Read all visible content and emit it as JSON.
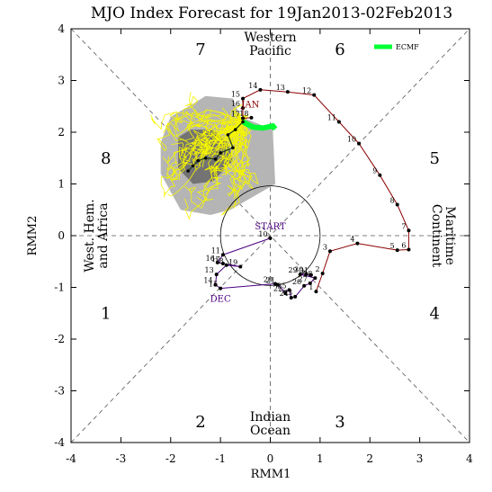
{
  "chart_data": {
    "type": "scatter",
    "title": "MJO Index Forecast for 19Jan2013-02Feb2013",
    "xlabel": "RMM1",
    "ylabel": "RMM2",
    "xlim": [
      -4,
      4
    ],
    "ylim": [
      -4,
      4
    ],
    "x_ticks": [
      "-4",
      "-3",
      "-2",
      "-1",
      "0",
      "1",
      "2",
      "3",
      "4"
    ],
    "y_ticks": [
      "-4",
      "-3",
      "-2",
      "-1",
      "0",
      "1",
      "2",
      "3",
      "4"
    ],
    "phase_numbers": [
      {
        "label": "1",
        "x": -3.3,
        "y": -1.5
      },
      {
        "label": "2",
        "x": -1.4,
        "y": -3.6
      },
      {
        "label": "3",
        "x": 1.4,
        "y": -3.6
      },
      {
        "label": "4",
        "x": 3.3,
        "y": -1.5
      },
      {
        "label": "5",
        "x": 3.3,
        "y": 1.5
      },
      {
        "label": "6",
        "x": 1.4,
        "y": 3.6
      },
      {
        "label": "7",
        "x": -1.4,
        "y": 3.6
      },
      {
        "label": "8",
        "x": -3.3,
        "y": 1.5
      }
    ],
    "regions": {
      "top": [
        "Western",
        "Pacific"
      ],
      "bottom": [
        "Indian",
        "Ocean"
      ],
      "left": [
        "West. Hem.",
        "and Africa"
      ],
      "right": [
        "Maritime",
        "Continent"
      ]
    },
    "legend": {
      "label": "ECMF",
      "color": "#00ff33",
      "position": "top-right"
    },
    "month_labels": [
      {
        "label": "START",
        "x": 0.0,
        "y": 0.12,
        "color": "#4b0082"
      },
      {
        "label": "DEC",
        "x": -1.0,
        "y": -1.28,
        "color": "#4b0082"
      },
      {
        "label": "JAN",
        "x": -0.4,
        "y": 2.48,
        "color": "#8b0000"
      }
    ],
    "series": [
      {
        "name": "DEC",
        "color": "#4b0082",
        "points": [
          {
            "day": "10",
            "x": 0.0,
            "y": -0.05
          },
          {
            "day": "11",
            "x": -0.95,
            "y": -0.37
          },
          {
            "day": "16",
            "x": -1.06,
            "y": -0.52
          },
          {
            "day": "17",
            "x": -0.95,
            "y": -0.54
          },
          {
            "day": "19",
            "x": -0.6,
            "y": -0.6
          },
          {
            "day": "18",
            "x": -0.88,
            "y": -0.57
          },
          {
            "day": "13",
            "x": -1.08,
            "y": -0.75
          },
          {
            "day": "14",
            "x": -1.1,
            "y": -0.95
          },
          {
            "day": "15",
            "x": -1.0,
            "y": -1.02
          },
          {
            "day": "20",
            "x": 0.1,
            "y": -0.93
          },
          {
            "day": "21",
            "x": 0.15,
            "y": -0.95
          },
          {
            "day": "22",
            "x": 0.3,
            "y": -1.1
          },
          {
            "day": "25",
            "x": 0.38,
            "y": -1.05
          },
          {
            "day": "24",
            "x": 0.42,
            "y": -1.2
          },
          {
            "day": "23",
            "x": 0.5,
            "y": -1.18
          },
          {
            "day": "26",
            "x": 0.68,
            "y": -0.97
          },
          {
            "day": "27",
            "x": 0.8,
            "y": -0.92
          },
          {
            "day": "28",
            "x": 0.9,
            "y": -0.82
          },
          {
            "day": "29",
            "x": 0.6,
            "y": -0.75
          },
          {
            "day": "30",
            "x": 0.72,
            "y": -0.74
          },
          {
            "day": "31",
            "x": 0.82,
            "y": -0.76
          }
        ]
      },
      {
        "name": "JAN",
        "color": "#8b0000",
        "points": [
          {
            "day": "1",
            "x": 0.92,
            "y": -1.08
          },
          {
            "day": "2",
            "x": 1.05,
            "y": -0.73
          },
          {
            "day": "3",
            "x": 1.2,
            "y": -0.3
          },
          {
            "day": "4",
            "x": 1.75,
            "y": -0.15
          },
          {
            "day": "5",
            "x": 2.55,
            "y": -0.28
          },
          {
            "day": "6",
            "x": 2.78,
            "y": -0.27
          },
          {
            "day": "7",
            "x": 2.78,
            "y": 0.1
          },
          {
            "day": "8",
            "x": 2.55,
            "y": 0.6
          },
          {
            "day": "9",
            "x": 2.2,
            "y": 1.17
          },
          {
            "day": "10",
            "x": 1.78,
            "y": 1.78
          },
          {
            "day": "11",
            "x": 1.38,
            "y": 2.2
          },
          {
            "day": "12",
            "x": 0.88,
            "y": 2.72
          },
          {
            "day": "13",
            "x": 0.35,
            "y": 2.78
          },
          {
            "day": "14",
            "x": -0.2,
            "y": 2.82
          },
          {
            "day": "15",
            "x": -0.55,
            "y": 2.65
          },
          {
            "day": "16",
            "x": -0.55,
            "y": 2.47
          },
          {
            "day": "17",
            "x": -0.55,
            "y": 2.27
          },
          {
            "day": "18",
            "x": -0.38,
            "y": 2.28
          }
        ]
      },
      {
        "name": "ECMF",
        "color": "#00ff33",
        "points": [
          {
            "x": -0.55,
            "y": 2.2
          },
          {
            "x": -0.35,
            "y": 2.1
          },
          {
            "x": -0.15,
            "y": 2.08
          },
          {
            "x": 0.05,
            "y": 2.12
          },
          {
            "x": 0.1,
            "y": 2.06
          }
        ]
      }
    ],
    "ensemble_mean": [
      {
        "x": -0.55,
        "y": 2.2
      },
      {
        "x": -0.7,
        "y": 2.05
      },
      {
        "x": -0.85,
        "y": 1.95
      },
      {
        "x": -0.75,
        "y": 1.7
      },
      {
        "x": -1.0,
        "y": 1.6
      },
      {
        "x": -1.1,
        "y": 1.48
      },
      {
        "x": -1.3,
        "y": 1.5
      },
      {
        "x": -1.45,
        "y": 1.45
      },
      {
        "x": -1.55,
        "y": 1.35
      },
      {
        "x": -1.65,
        "y": 1.25
      }
    ],
    "spread_outer": [
      {
        "x": -2.2,
        "y": 1.8
      },
      {
        "x": -2.0,
        "y": 2.3
      },
      {
        "x": -1.55,
        "y": 2.55
      },
      {
        "x": -1.3,
        "y": 2.7
      },
      {
        "x": -0.75,
        "y": 2.65
      },
      {
        "x": -0.6,
        "y": 2.3
      },
      {
        "x": 0.05,
        "y": 2.05
      },
      {
        "x": 0.1,
        "y": 1.0
      },
      {
        "x": -0.8,
        "y": 0.5
      },
      {
        "x": -1.2,
        "y": 0.4
      },
      {
        "x": -1.8,
        "y": 0.5
      },
      {
        "x": -2.2,
        "y": 1.2
      }
    ],
    "spread_inner": [
      {
        "x": -1.85,
        "y": 1.9
      },
      {
        "x": -1.6,
        "y": 2.05
      },
      {
        "x": -1.15,
        "y": 2.05
      },
      {
        "x": -0.85,
        "y": 1.8
      },
      {
        "x": -0.75,
        "y": 1.45
      },
      {
        "x": -1.15,
        "y": 1.05
      },
      {
        "x": -1.55,
        "y": 1.0
      },
      {
        "x": -1.85,
        "y": 1.3
      }
    ],
    "grid": false
  }
}
